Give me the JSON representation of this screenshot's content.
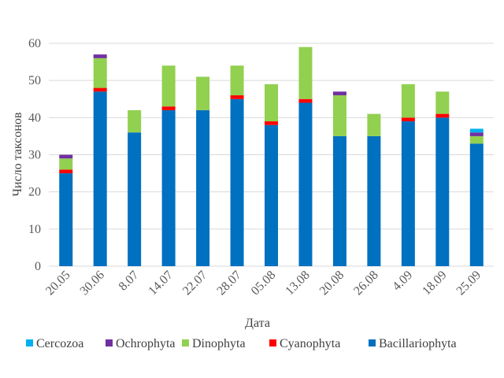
{
  "chart_data": {
    "type": "bar",
    "stacked": true,
    "xlabel": "Дата",
    "ylabel": "Число таксонов",
    "ylim": [
      0,
      60
    ],
    "yticks": [
      0,
      10,
      20,
      30,
      40,
      50,
      60
    ],
    "grid": true,
    "legend_position": "bottom",
    "categories": [
      "20.05",
      "30.06",
      "8.07",
      "14.07",
      "22.07",
      "28.07",
      "05.08",
      "13.08",
      "20.08",
      "26.08",
      "4.09",
      "18.09",
      "25.09"
    ],
    "series": [
      {
        "name": "Bacillariophyta",
        "color": "#0070C0",
        "values": [
          25,
          47,
          36,
          42,
          42,
          45,
          38,
          44,
          35,
          35,
          39,
          40,
          33
        ]
      },
      {
        "name": "Cyanophyta",
        "color": "#FF0000",
        "values": [
          1,
          1,
          0,
          1,
          0,
          1,
          1,
          1,
          0,
          0,
          1,
          1,
          0
        ]
      },
      {
        "name": "Dinophyta",
        "color": "#92D050",
        "values": [
          3,
          8,
          6,
          11,
          9,
          8,
          10,
          14,
          11,
          6,
          9,
          6,
          2
        ]
      },
      {
        "name": "Ochrophyta",
        "color": "#7030A0",
        "values": [
          1,
          1,
          0,
          0,
          0,
          0,
          0,
          0,
          1,
          0,
          0,
          0,
          1
        ]
      },
      {
        "name": "Cercozoa",
        "color": "#00B0F0",
        "values": [
          0,
          0,
          0,
          0,
          0,
          0,
          0,
          0,
          0,
          0,
          0,
          0,
          1
        ]
      }
    ],
    "legend_order": [
      "Cercozoa",
      "Ochrophyta",
      "Dinophyta",
      "Cyanophyta",
      "Bacillariophyta"
    ]
  }
}
